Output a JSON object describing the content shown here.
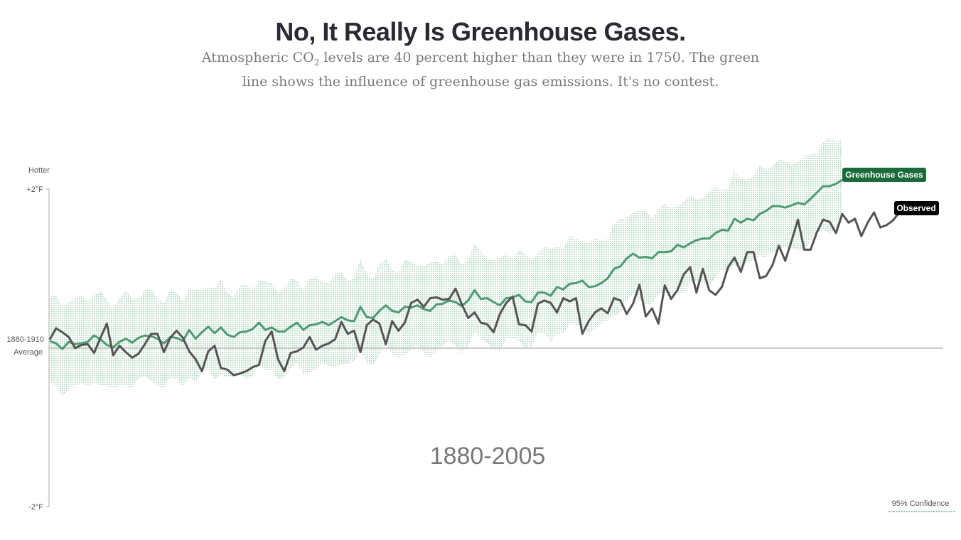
{
  "title": "No, It Really Is Greenhouse Gases.",
  "subtitle": {
    "line1_pre": "Atmospheric CO",
    "line1_sub": "2",
    "line1_post": " levels are 40 percent higher than they were in 1750. The green",
    "line2": "line shows the influence of greenhouse gas emissions. It's no contest."
  },
  "chart_data": {
    "type": "line",
    "period_label": "1880-2005",
    "y_axis": {
      "top_label": "Hotter",
      "ticks": [
        {
          "value": 2,
          "label": "+2°F"
        },
        {
          "value": 0,
          "label_line1": "1880-1910",
          "label_line2": "Average"
        },
        {
          "value": -2,
          "label": "-2°F"
        }
      ],
      "ylim": [
        -2,
        2
      ],
      "unit": "°F"
    },
    "x_range": [
      1880,
      2014
    ],
    "legend": {
      "confidence_label": "95% Confidence",
      "placement": "bottom-right"
    },
    "colors": {
      "greenhouse": "#4f9a72",
      "greenhouse_tag": "#1a6b3a",
      "observed": "#555555",
      "observed_tag": "#000000",
      "band": "#8fc7a4"
    },
    "series": [
      {
        "name": "Greenhouse Gases",
        "start_year": 1880,
        "confidence_halfwidth": 0.55,
        "values": [
          0.09,
          0.06,
          -0.01,
          0.08,
          0.05,
          0.06,
          0.08,
          0.16,
          0.11,
          0.04,
          0.01,
          0.08,
          0.12,
          0.07,
          0.13,
          0.16,
          0.15,
          0.12,
          0.06,
          0.14,
          0.13,
          0.09,
          0.23,
          0.12,
          0.2,
          0.27,
          0.19,
          0.26,
          0.17,
          0.14,
          0.2,
          0.21,
          0.24,
          0.32,
          0.23,
          0.26,
          0.21,
          0.21,
          0.27,
          0.32,
          0.23,
          0.29,
          0.3,
          0.33,
          0.29,
          0.34,
          0.39,
          0.35,
          0.34,
          0.52,
          0.39,
          0.38,
          0.47,
          0.54,
          0.47,
          0.45,
          0.52,
          0.51,
          0.54,
          0.49,
          0.47,
          0.55,
          0.56,
          0.6,
          0.58,
          0.53,
          0.6,
          0.73,
          0.62,
          0.63,
          0.58,
          0.54,
          0.63,
          0.64,
          0.67,
          0.59,
          0.58,
          0.7,
          0.7,
          0.66,
          0.77,
          0.74,
          0.81,
          0.82,
          0.85,
          0.77,
          0.78,
          0.82,
          0.88,
          1.0,
          1.03,
          1.13,
          1.19,
          1.14,
          1.15,
          1.13,
          1.21,
          1.21,
          1.22,
          1.3,
          1.27,
          1.32,
          1.36,
          1.38,
          1.38,
          1.45,
          1.49,
          1.48,
          1.63,
          1.58,
          1.63,
          1.61,
          1.69,
          1.73,
          1.79,
          1.79,
          1.77,
          1.8,
          1.83,
          1.81,
          1.88,
          1.96,
          2.04,
          2.04,
          2.07,
          2.12
        ]
      },
      {
        "name": "Observed",
        "start_year": 1880,
        "values": [
          0.11,
          0.25,
          0.2,
          0.14,
          0.0,
          0.04,
          0.05,
          -0.06,
          0.13,
          0.31,
          -0.09,
          0.03,
          -0.05,
          -0.12,
          -0.07,
          0.05,
          0.18,
          0.18,
          -0.05,
          0.13,
          0.22,
          0.13,
          -0.04,
          -0.14,
          -0.29,
          -0.04,
          0.03,
          -0.25,
          -0.27,
          -0.34,
          -0.32,
          -0.29,
          -0.24,
          -0.21,
          0.09,
          0.21,
          -0.14,
          -0.29,
          -0.06,
          -0.04,
          0.01,
          0.14,
          -0.02,
          0.03,
          0.06,
          0.11,
          0.33,
          0.18,
          0.22,
          -0.05,
          0.29,
          0.36,
          0.31,
          0.05,
          0.34,
          0.22,
          0.32,
          0.57,
          0.61,
          0.52,
          0.63,
          0.64,
          0.61,
          0.62,
          0.75,
          0.55,
          0.38,
          0.45,
          0.32,
          0.3,
          0.2,
          0.43,
          0.57,
          0.65,
          0.3,
          0.29,
          0.21,
          0.56,
          0.6,
          0.57,
          0.45,
          0.63,
          0.59,
          0.63,
          0.18,
          0.34,
          0.45,
          0.5,
          0.44,
          0.63,
          0.6,
          0.43,
          0.56,
          0.8,
          0.4,
          0.5,
          0.31,
          0.79,
          0.62,
          0.73,
          0.93,
          1.02,
          0.7,
          1.0,
          0.73,
          0.67,
          0.77,
          1.02,
          1.14,
          0.96,
          1.21,
          1.21,
          0.88,
          0.91,
          1.05,
          1.29,
          1.1,
          1.35,
          1.62,
          1.24,
          1.24,
          1.46,
          1.62,
          1.59,
          1.45,
          1.69,
          1.58,
          1.63,
          1.41,
          1.58,
          1.71,
          1.52,
          1.55,
          1.61,
          1.71
        ]
      }
    ]
  }
}
